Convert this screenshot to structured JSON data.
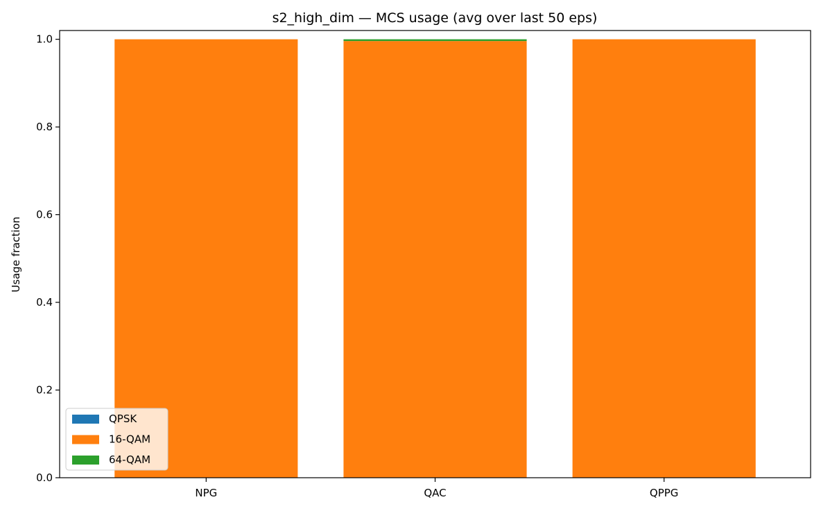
{
  "chart_data": {
    "type": "bar",
    "stacked": true,
    "title": "s2_high_dim — MCS usage (avg over last 50 eps)",
    "xlabel": "",
    "ylabel": "Usage fraction",
    "categories": [
      "NPG",
      "QAC",
      "QPPG"
    ],
    "series": [
      {
        "name": "QPSK",
        "color": "#1f77b4",
        "values": [
          0.0,
          0.0,
          0.0
        ]
      },
      {
        "name": "16-QAM",
        "color": "#ff7f0e",
        "values": [
          1.0,
          0.996,
          1.0
        ]
      },
      {
        "name": "64-QAM",
        "color": "#2ca02c",
        "values": [
          0.0,
          0.004,
          0.0
        ]
      }
    ],
    "ylim": [
      0,
      1.02
    ],
    "yticks": [
      0.0,
      0.2,
      0.4,
      0.6,
      0.8,
      1.0
    ],
    "ytick_labels": [
      "0.0",
      "0.2",
      "0.4",
      "0.6",
      "0.8",
      "1.0"
    ],
    "grid": false,
    "legend_position": "lower-left"
  }
}
